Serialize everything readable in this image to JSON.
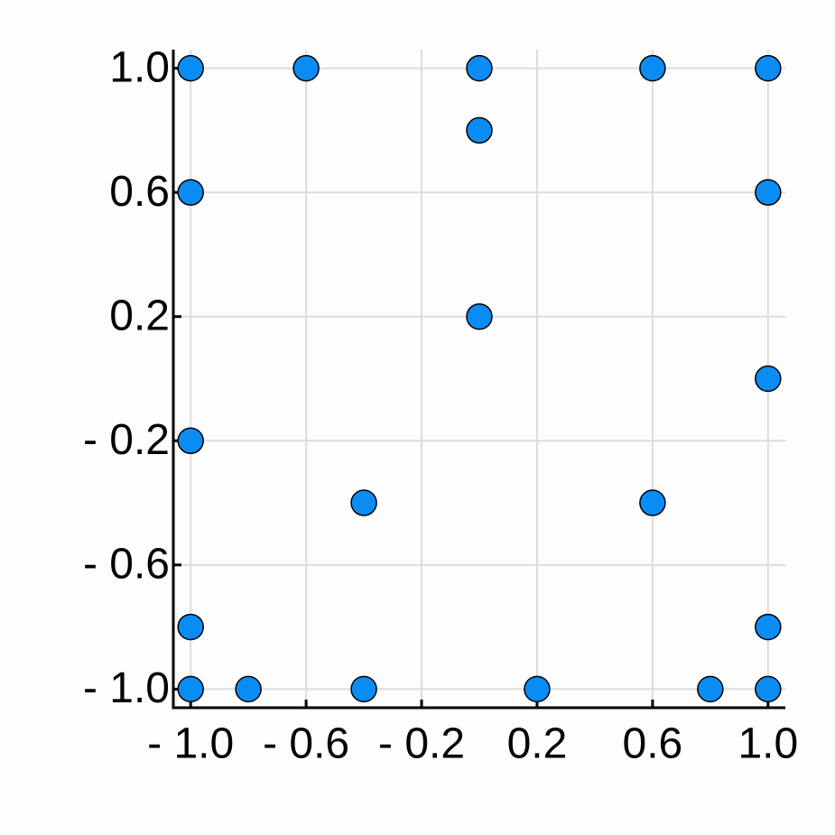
{
  "chart_data": {
    "type": "scatter",
    "x": [
      -1,
      -0.6,
      0,
      0.6,
      1,
      0,
      -1,
      1,
      0,
      1,
      -1,
      -0.4,
      0.6,
      -1,
      1,
      -1,
      -0.8,
      -0.4,
      0.2,
      0.8,
      1
    ],
    "values": [
      1,
      1,
      1,
      1,
      1,
      0.8,
      0.6,
      0.6,
      0.2,
      0,
      -0.2,
      -0.4,
      -0.4,
      -0.8,
      -0.8,
      -1,
      -1,
      -1,
      -1,
      -1,
      -1
    ],
    "color": "#0a8cf5",
    "xlim": [
      -1.06,
      1.06
    ],
    "ylim": [
      -1.06,
      1.06
    ],
    "xticks": [
      {
        "value": -1,
        "label": "- 1.0"
      },
      {
        "value": -0.6,
        "label": "- 0.6"
      },
      {
        "value": -0.2,
        "label": "- 0.2"
      },
      {
        "value": 0.2,
        "label": "0.2"
      },
      {
        "value": 0.6,
        "label": "0.6"
      },
      {
        "value": 1,
        "label": "1.0"
      }
    ],
    "yticks": [
      {
        "value": -1,
        "label": "- 1.0"
      },
      {
        "value": -0.6,
        "label": "- 0.6"
      },
      {
        "value": -0.2,
        "label": "- 0.2"
      },
      {
        "value": 0.2,
        "label": "0.2"
      },
      {
        "value": 0.6,
        "label": "0.6"
      },
      {
        "value": 1,
        "label": "1.0"
      }
    ],
    "grid": true
  }
}
